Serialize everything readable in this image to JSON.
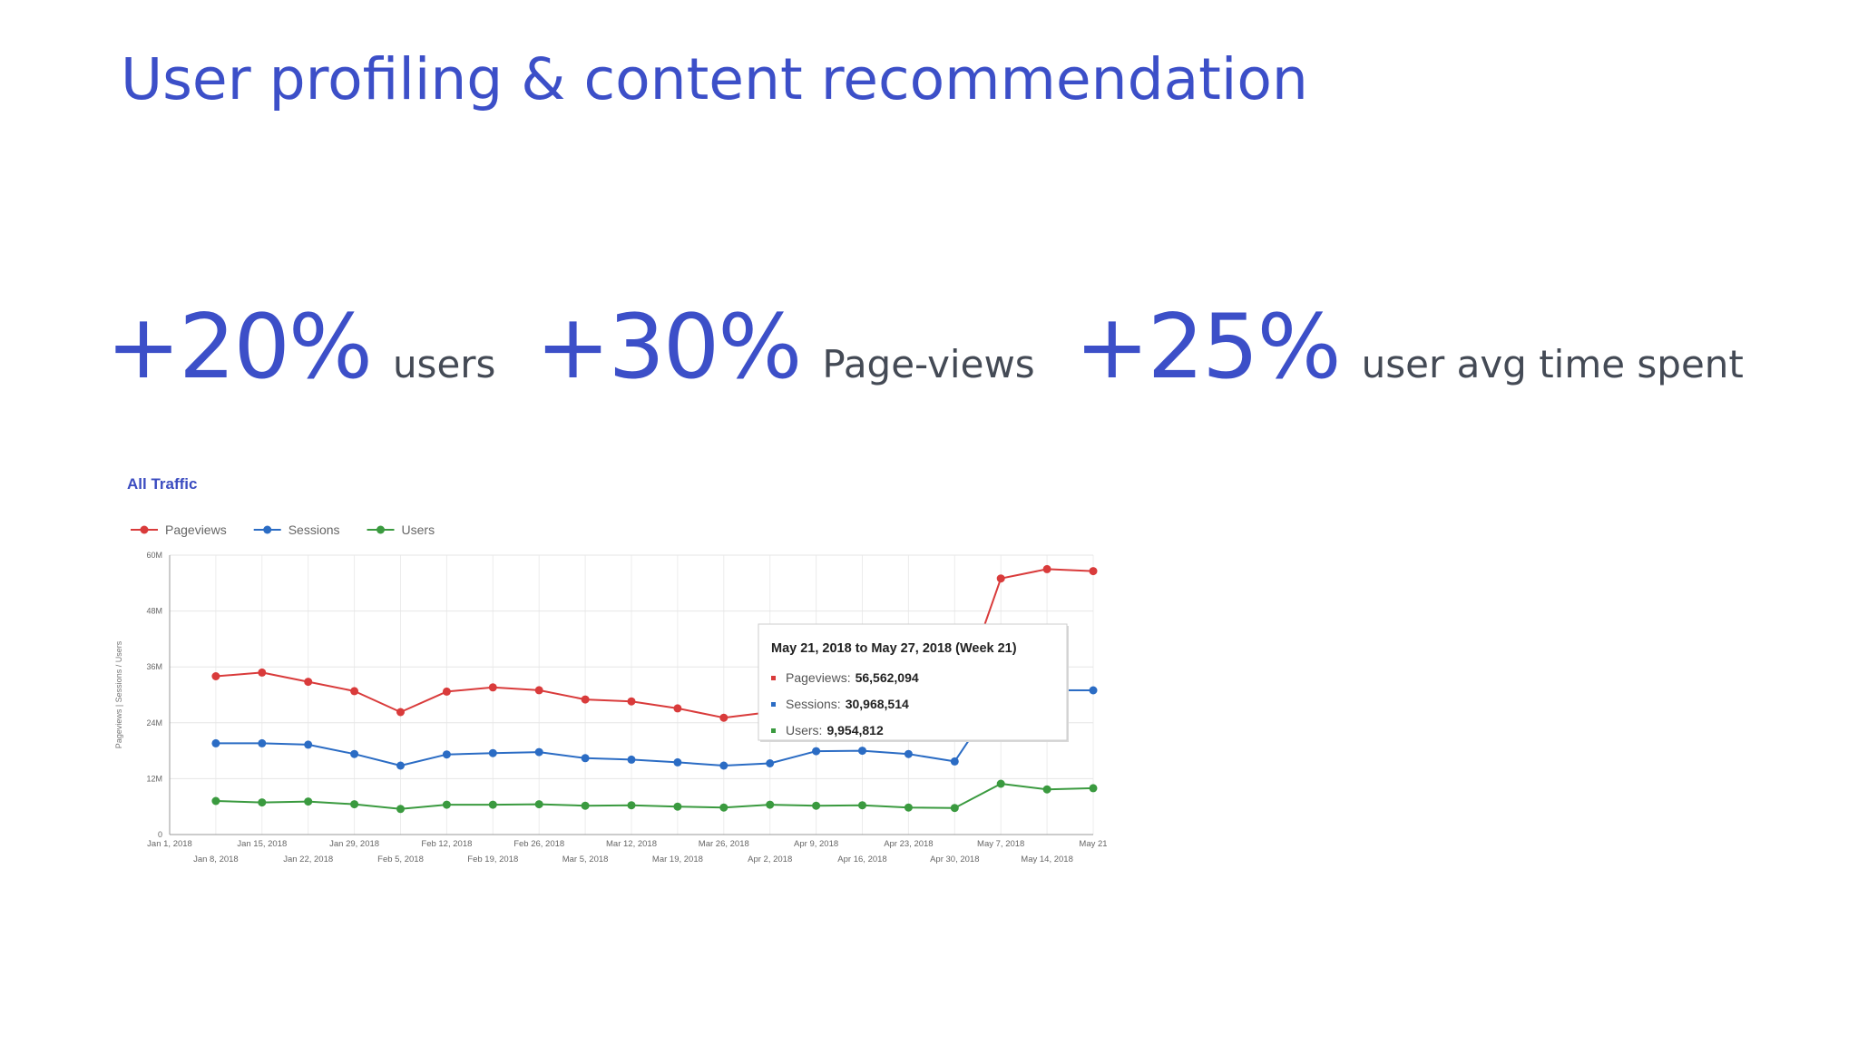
{
  "slide": {
    "title": "User profiling & content recommendation",
    "title_color": "#3c4fc8",
    "stats": [
      {
        "value": "+20%",
        "label": "users"
      },
      {
        "value": "+30%",
        "label": "Page-views"
      },
      {
        "value": "+25%",
        "label": "user avg time spent"
      }
    ]
  },
  "chart_data": {
    "type": "line",
    "title": "All Traffic",
    "xlabel": "",
    "ylabel": "Pageviews | Sessions / Users",
    "ylim": [
      0,
      60000000
    ],
    "y_ticks": [
      "0",
      "12M",
      "24M",
      "36M",
      "48M",
      "60M"
    ],
    "grid": true,
    "legend_position": "top-left",
    "x_tick_labels_top": [
      "Jan 1, 2018",
      "Jan 15, 2018",
      "Jan 29, 2018",
      "Feb 12, 2018",
      "Feb 26, 2018",
      "Mar 12, 2018",
      "Mar 26, 2018",
      "Apr 9, 2018",
      "Apr 23, 2018",
      "May 7, 2018",
      "May 21"
    ],
    "x_tick_labels_bottom": [
      "Jan 8, 2018",
      "Jan 22, 2018",
      "Feb 5, 2018",
      "Feb 19, 2018",
      "Mar 5, 2018",
      "Mar 19, 2018",
      "Apr 2, 2018",
      "Apr 16, 2018",
      "Apr 30, 2018",
      "May 14, 2018"
    ],
    "x": [
      "2018-01-08",
      "2018-01-15",
      "2018-01-22",
      "2018-01-29",
      "2018-02-05",
      "2018-02-12",
      "2018-02-19",
      "2018-02-26",
      "2018-03-05",
      "2018-03-12",
      "2018-03-19",
      "2018-03-26",
      "2018-04-02",
      "2018-04-09",
      "2018-04-16",
      "2018-04-23",
      "2018-04-30",
      "2018-05-07",
      "2018-05-14",
      "2018-05-21"
    ],
    "series": [
      {
        "name": "Pageviews",
        "color": "#d93b3b",
        "values": [
          34000000,
          34800000,
          32800000,
          30800000,
          26300000,
          30700000,
          31600000,
          31000000,
          29000000,
          28600000,
          27100000,
          25100000,
          26300000,
          27500000,
          27000000,
          26500000,
          26700000,
          55000000,
          57000000,
          56562094
        ]
      },
      {
        "name": "Sessions",
        "color": "#2b6cc4",
        "values": [
          19600000,
          19600000,
          19300000,
          17300000,
          14800000,
          17200000,
          17500000,
          17700000,
          16400000,
          16100000,
          15500000,
          14800000,
          15300000,
          17900000,
          18000000,
          17300000,
          15700000,
          30500000,
          31000000,
          30968514
        ]
      },
      {
        "name": "Users",
        "color": "#3a9a3f",
        "values": [
          7200000,
          6900000,
          7100000,
          6500000,
          5500000,
          6400000,
          6400000,
          6500000,
          6200000,
          6300000,
          6000000,
          5800000,
          6400000,
          6200000,
          6300000,
          5800000,
          5700000,
          10900000,
          9700000,
          9954812
        ]
      }
    ],
    "tooltip": {
      "title": "May 21, 2018 to May 27, 2018 (Week 21)",
      "rows": [
        {
          "label": "Pageviews:",
          "value": "56,562,094",
          "color": "#d93b3b"
        },
        {
          "label": "Sessions:",
          "value": "30,968,514",
          "color": "#2b6cc4"
        },
        {
          "label": "Users:",
          "value": "9,954,812",
          "color": "#3a9a3f"
        }
      ]
    }
  }
}
